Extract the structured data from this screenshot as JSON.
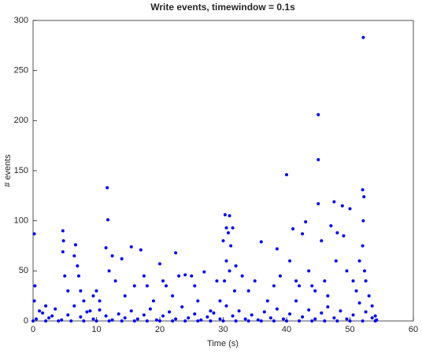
{
  "chart_data": {
    "type": "scatter",
    "title": "Write events, timewindow = 0.1s",
    "x_label": "Time (s)",
    "y_label": "# events",
    "x": [
      0.2,
      0.3,
      0.2,
      1,
      2,
      3,
      4.7,
      4.8,
      4.7,
      5,
      5.5,
      6.7,
      6.5,
      7,
      7.2,
      7.5,
      8,
      9,
      9.5,
      10,
      10.5,
      11.7,
      11.8,
      11.5,
      12,
      12.5,
      13,
      14,
      14.5,
      15.5,
      16,
      17,
      17.5,
      18,
      19,
      20,
      20.5,
      21,
      22,
      22.5,
      23,
      24,
      25,
      25.5,
      26,
      27,
      28,
      29,
      29.5,
      30,
      30.3,
      30.5,
      30.8,
      31,
      31.2,
      31.5,
      30.5,
      31,
      30.2,
      31.8,
      32,
      33,
      34,
      35,
      36,
      37,
      38,
      38.5,
      39,
      40,
      40.5,
      41,
      41.5,
      42,
      42.5,
      43,
      43.5,
      44,
      44.5,
      45,
      45,
      45,
      45.5,
      46,
      46.5,
      47,
      47.5,
      47.8,
      48,
      48.8,
      49,
      49.5,
      50,
      50.5,
      51,
      51.5,
      52.1,
      52,
      52.2,
      52.1,
      52,
      52.3,
      52.5,
      53,
      53.5,
      54,
      0.5,
      1.5,
      2.5,
      3.5,
      4.5,
      5.5,
      6.5,
      7.5,
      8.5,
      9.5,
      10.5,
      11.5,
      12.5,
      13.5,
      14.5,
      15.5,
      16.5,
      17.5,
      18.5,
      19.5,
      20.5,
      21.5,
      22.5,
      23.5,
      24.5,
      25.5,
      26.5,
      27.5,
      28.5,
      29.5,
      30.5,
      31.5,
      32.5,
      33.5,
      34.5,
      35.5,
      36.5,
      37.5,
      38.5,
      39.5,
      40.5,
      41.5,
      42.5,
      43.5,
      44.5,
      45.5,
      46.5,
      47.5,
      48.5,
      49.5,
      50.5,
      51.5,
      52.5,
      53.5,
      54.2,
      0,
      2,
      4,
      6,
      8,
      10,
      12,
      14,
      16,
      18,
      20,
      22,
      24,
      26,
      28,
      30,
      32,
      34,
      36,
      38,
      40,
      42,
      44,
      46,
      48,
      50,
      52,
      54
    ],
    "series": [
      {
        "color": "#0000ff",
        "values": [
          87,
          35,
          20,
          10,
          15,
          5,
          90,
          80,
          69,
          45,
          30,
          76,
          65,
          55,
          45,
          30,
          20,
          10,
          25,
          30,
          20,
          133,
          101,
          73,
          50,
          65,
          40,
          62,
          25,
          74,
          35,
          71,
          45,
          35,
          20,
          57,
          40,
          35,
          25,
          68,
          45,
          46,
          45,
          35,
          20,
          49,
          10,
          40,
          20,
          80,
          106,
          93,
          88,
          105,
          75,
          93,
          60,
          50,
          40,
          30,
          55,
          45,
          30,
          40,
          79,
          20,
          35,
          72,
          45,
          146,
          60,
          92,
          40,
          35,
          87,
          99,
          50,
          35,
          30,
          206,
          161,
          117,
          80,
          40,
          25,
          95,
          119,
          60,
          88,
          115,
          85,
          50,
          112,
          40,
          30,
          60,
          283,
          131,
          124,
          100,
          75,
          50,
          40,
          25,
          15,
          5,
          2,
          8,
          3,
          12,
          1,
          6,
          15,
          4,
          9,
          2,
          11,
          5,
          1,
          7,
          3,
          10,
          2,
          6,
          12,
          1,
          5,
          9,
          2,
          14,
          3,
          7,
          1,
          4,
          8,
          2,
          15,
          5,
          10,
          2,
          6,
          1,
          9,
          3,
          12,
          2,
          7,
          20,
          4,
          11,
          2,
          8,
          14,
          3,
          10,
          2,
          6,
          18,
          9,
          3,
          1,
          0,
          0,
          0,
          0,
          0,
          0,
          0,
          0,
          0,
          0,
          0,
          0,
          0,
          0,
          0,
          0,
          0,
          0,
          0,
          0,
          0,
          0,
          0,
          0,
          0,
          0,
          0,
          0
        ]
      }
    ],
    "xlim": [
      0,
      60
    ],
    "xticks": [
      0,
      10,
      20,
      30,
      40,
      50,
      60
    ],
    "ylim": [
      0,
      300
    ],
    "yticks": [
      0,
      50,
      100,
      150,
      200,
      250,
      300
    ]
  }
}
